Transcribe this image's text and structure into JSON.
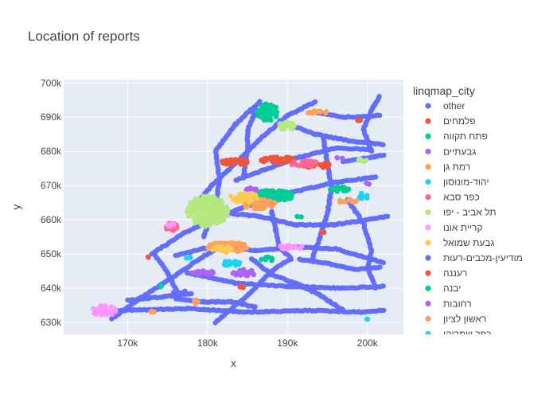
{
  "chart_data": {
    "type": "scatter",
    "title": "Location of reports",
    "xlabel": "x",
    "ylabel": "y",
    "xlim": [
      162000,
      204500
    ],
    "ylim": [
      626500,
      701000
    ],
    "x_ticks": [
      170000,
      180000,
      190000,
      200000
    ],
    "x_tick_labels": [
      "170k",
      "180k",
      "190k",
      "200k"
    ],
    "y_ticks": [
      630000,
      640000,
      650000,
      660000,
      670000,
      680000,
      690000,
      700000
    ],
    "y_tick_labels": [
      "630k",
      "640k",
      "650k",
      "660k",
      "670k",
      "680k",
      "690k",
      "700k"
    ],
    "grid": true,
    "legend": {
      "title": "linqmap_city",
      "placement": "right",
      "items": [
        {
          "label": "other",
          "color": "#636efa"
        },
        {
          "label": "פלמחים",
          "color": "#EF553B"
        },
        {
          "label": "פתח תקווה",
          "color": "#00cc96"
        },
        {
          "label": "גבעתיים",
          "color": "#ab63fa"
        },
        {
          "label": "רמת גן",
          "color": "#FFA15A"
        },
        {
          "label": "יהוד-מונוסון",
          "color": "#19d3f3"
        },
        {
          "label": "כפר סבא",
          "color": "#FF6692"
        },
        {
          "label": "תל אביב - יפו",
          "color": "#B6E880"
        },
        {
          "label": "קריית אונו",
          "color": "#FF97FF"
        },
        {
          "label": "גבעת שמואל",
          "color": "#FECB52"
        },
        {
          "label": "מודיעין-מכבים-רעות",
          "color": "#636efa"
        },
        {
          "label": "רעננה",
          "color": "#EF553B"
        },
        {
          "label": "יבנה",
          "color": "#00cc96"
        },
        {
          "label": "רחובות",
          "color": "#ab63fa"
        },
        {
          "label": "ראשון לציון",
          "color": "#FFA15A"
        },
        {
          "label": "כפר שמריהו",
          "color": "#19d3f3"
        }
      ]
    },
    "series": [
      {
        "name": "other",
        "color": "#636efa",
        "kind": "roads",
        "roads": [
          [
            [
              178000,
              663000
            ],
            [
              180500,
              670000
            ],
            [
              183500,
              676500
            ],
            [
              186500,
              683500
            ],
            [
              190000,
              690500
            ],
            [
              193500,
              694500
            ]
          ],
          [
            [
              179500,
              655000
            ],
            [
              181000,
              664000
            ],
            [
              181500,
              672000
            ],
            [
              181000,
              680000
            ],
            [
              183500,
              688000
            ],
            [
              186500,
              694500
            ]
          ],
          [
            [
              173000,
              650000
            ],
            [
              177000,
              656000
            ],
            [
              181500,
              661000
            ],
            [
              186000,
              665000
            ],
            [
              190500,
              668000
            ],
            [
              196000,
              671000
            ],
            [
              201000,
              672500
            ]
          ],
          [
            [
              168000,
              631000
            ],
            [
              171500,
              637000
            ],
            [
              175500,
              643000
            ],
            [
              179000,
              648500
            ],
            [
              182000,
              653000
            ]
          ],
          [
            [
              169000,
              633500
            ],
            [
              177500,
              634000
            ],
            [
              185000,
              633000
            ],
            [
              193000,
              633500
            ],
            [
              199000,
              633000
            ],
            [
              202000,
              633500
            ]
          ],
          [
            [
              177500,
              644500
            ],
            [
              183500,
              641500
            ],
            [
              190000,
              640500
            ],
            [
              197000,
              640000
            ],
            [
              202000,
              640500
            ]
          ],
          [
            [
              182000,
              662000
            ],
            [
              186500,
              661000
            ],
            [
              191000,
              658500
            ],
            [
              195500,
              658500
            ],
            [
              200000,
              660000
            ],
            [
              202500,
              661000
            ]
          ],
          [
            [
              183500,
              671500
            ],
            [
              187000,
              674500
            ],
            [
              191000,
              678000
            ],
            [
              196000,
              681000
            ],
            [
              200500,
              680500
            ]
          ],
          [
            [
              185500,
              648500
            ],
            [
              188000,
              644000
            ],
            [
              191500,
              641000
            ],
            [
              194000,
              638000
            ],
            [
              197000,
              633500
            ]
          ],
          [
            [
              189000,
              689000
            ],
            [
              193500,
              685000
            ],
            [
              198000,
              683000
            ],
            [
              202000,
              682000
            ]
          ],
          [
            [
              200500,
              680000
            ],
            [
              199500,
              686500
            ],
            [
              200500,
              692000
            ],
            [
              201500,
              696000
            ]
          ],
          [
            [
              197000,
              677000
            ],
            [
              201000,
              678500
            ],
            [
              202000,
              679000
            ]
          ],
          [
            [
              193500,
              691500
            ],
            [
              197000,
              690000
            ],
            [
              201500,
              690500
            ]
          ],
          [
            [
              176000,
              649500
            ],
            [
              181000,
              652500
            ],
            [
              186000,
              651000
            ],
            [
              191000,
              652000
            ],
            [
              196000,
              651500
            ],
            [
              202000,
              647500
            ]
          ],
          [
            [
              176000,
              637000
            ],
            [
              179500,
              636000
            ],
            [
              183000,
              636000
            ],
            [
              186000,
              634500
            ]
          ],
          [
            [
              197500,
              666000
            ],
            [
              199500,
              659000
            ],
            [
              200500,
              651000
            ],
            [
              200000,
              646000
            ],
            [
              201000,
              640000
            ]
          ],
          [
            [
              173500,
              649500
            ],
            [
              175000,
              644500
            ],
            [
              176500,
              637500
            ]
          ],
          [
            [
              186000,
              692000
            ],
            [
              185000,
              686000
            ],
            [
              185000,
              680000
            ],
            [
              184500,
              673000
            ]
          ],
          [
            [
              181000,
              630000
            ],
            [
              183000,
              634000
            ],
            [
              185500,
              639000
            ],
            [
              188000,
              645000
            ],
            [
              190000,
              648000
            ]
          ],
          [
            [
              194500,
              683500
            ],
            [
              195000,
              676500
            ],
            [
              195500,
              669500
            ],
            [
              195000,
              662000
            ],
            [
              194000,
              654500
            ],
            [
              193000,
              648000
            ]
          ],
          [
            [
              188000,
              662500
            ],
            [
              188500,
              657000
            ],
            [
              189000,
              652000
            ],
            [
              190500,
              648500
            ]
          ],
          [
            [
              170000,
              636500
            ],
            [
              174500,
              637500
            ],
            [
              178000,
              638500
            ]
          ],
          [
            [
              191500,
              648500
            ],
            [
              195500,
              647000
            ],
            [
              198500,
              645500
            ],
            [
              201500,
              646000
            ]
          ]
        ]
      },
      {
        "name": "פלמחים",
        "color": "#EF553B",
        "kind": "cluster",
        "clusters": [
          {
            "cx": 183500,
            "cy": 677000,
            "rx": 1800,
            "ry": 900,
            "n": 30
          },
          {
            "cx": 189000,
            "cy": 677500,
            "rx": 2400,
            "ry": 900,
            "n": 45
          },
          {
            "cx": 193500,
            "cy": 676000,
            "rx": 1800,
            "ry": 1000,
            "n": 30
          },
          {
            "cx": 172500,
            "cy": 649000,
            "rx": 200,
            "ry": 200,
            "n": 2
          },
          {
            "cx": 199000,
            "cy": 689000,
            "rx": 300,
            "ry": 300,
            "n": 3
          },
          {
            "cx": 184000,
            "cy": 640500,
            "rx": 700,
            "ry": 400,
            "n": 6
          }
        ]
      },
      {
        "name": "פתח תקווה",
        "color": "#00cc96",
        "kind": "cluster",
        "clusters": [
          {
            "cx": 188000,
            "cy": 667000,
            "rx": 2800,
            "ry": 1600,
            "n": 120
          },
          {
            "cx": 187500,
            "cy": 691500,
            "rx": 1300,
            "ry": 2500,
            "n": 60
          },
          {
            "cx": 196500,
            "cy": 669000,
            "rx": 1500,
            "ry": 700,
            "n": 20
          },
          {
            "cx": 187500,
            "cy": 648500,
            "rx": 800,
            "ry": 600,
            "n": 10
          }
        ]
      },
      {
        "name": "גבעתיים",
        "color": "#ab63fa",
        "kind": "cluster",
        "clusters": [
          {
            "cx": 179500,
            "cy": 644500,
            "rx": 1500,
            "ry": 600,
            "n": 25
          },
          {
            "cx": 184500,
            "cy": 644500,
            "rx": 1500,
            "ry": 1000,
            "n": 25
          },
          {
            "cx": 185500,
            "cy": 669000,
            "rx": 800,
            "ry": 700,
            "n": 10
          }
        ]
      },
      {
        "name": "רמת גן",
        "color": "#FFA15A",
        "kind": "cluster",
        "clusters": [
          {
            "cx": 182500,
            "cy": 652000,
            "rx": 2500,
            "ry": 1500,
            "n": 70
          },
          {
            "cx": 186500,
            "cy": 664500,
            "rx": 2200,
            "ry": 1500,
            "n": 50
          },
          {
            "cx": 193500,
            "cy": 691500,
            "rx": 1800,
            "ry": 400,
            "n": 15
          },
          {
            "cx": 197500,
            "cy": 665500,
            "rx": 1200,
            "ry": 600,
            "n": 10
          },
          {
            "cx": 178500,
            "cy": 636000,
            "rx": 400,
            "ry": 500,
            "n": 6
          }
        ]
      },
      {
        "name": "יהוד-מונוסון",
        "color": "#19d3f3",
        "kind": "cluster",
        "clusters": [
          {
            "cx": 183000,
            "cy": 647500,
            "rx": 1200,
            "ry": 1000,
            "n": 18
          },
          {
            "cx": 199500,
            "cy": 667000,
            "rx": 700,
            "ry": 900,
            "n": 10
          },
          {
            "cx": 200000,
            "cy": 631000,
            "rx": 200,
            "ry": 200,
            "n": 2
          }
        ]
      },
      {
        "name": "כפר סבא",
        "color": "#FF6692",
        "kind": "cluster",
        "clusters": [
          {
            "cx": 175500,
            "cy": 658000,
            "rx": 800,
            "ry": 1200,
            "n": 25
          },
          {
            "cx": 192000,
            "cy": 676500,
            "rx": 1800,
            "ry": 800,
            "n": 25
          }
        ]
      },
      {
        "name": "תל אביב - יפו",
        "color": "#B6E880",
        "kind": "cluster",
        "clusters": [
          {
            "cx": 180000,
            "cy": 662500,
            "rx": 2600,
            "ry": 4500,
            "n": 220
          },
          {
            "cx": 190000,
            "cy": 687500,
            "rx": 1200,
            "ry": 1200,
            "n": 20
          },
          {
            "cx": 199500,
            "cy": 677500,
            "rx": 600,
            "ry": 500,
            "n": 6
          }
        ]
      },
      {
        "name": "קריית אונו",
        "color": "#FF97FF",
        "kind": "cluster",
        "clusters": [
          {
            "cx": 167000,
            "cy": 633500,
            "rx": 1600,
            "ry": 1500,
            "n": 60
          },
          {
            "cx": 190500,
            "cy": 652000,
            "rx": 1500,
            "ry": 800,
            "n": 15
          },
          {
            "cx": 175500,
            "cy": 658500,
            "rx": 500,
            "ry": 400,
            "n": 6
          }
        ]
      },
      {
        "name": "גבעת שמואל",
        "color": "#FECB52",
        "kind": "cluster",
        "clusters": [
          {
            "cx": 184500,
            "cy": 666500,
            "rx": 1700,
            "ry": 1500,
            "n": 40
          },
          {
            "cx": 182000,
            "cy": 651500,
            "rx": 1500,
            "ry": 800,
            "n": 20
          }
        ]
      },
      {
        "name": "מודיעין-מכבים-רעות",
        "color": "#636efa",
        "kind": "cluster",
        "clusters": [
          {
            "cx": 176500,
            "cy": 639000,
            "rx": 800,
            "ry": 500,
            "n": 6
          }
        ]
      },
      {
        "name": "רעננה",
        "color": "#EF553B",
        "kind": "cluster",
        "clusters": [
          {
            "cx": 194500,
            "cy": 656500,
            "rx": 300,
            "ry": 300,
            "n": 3
          }
        ]
      },
      {
        "name": "יבנה",
        "color": "#00cc96",
        "kind": "cluster",
        "clusters": [
          {
            "cx": 174000,
            "cy": 640500,
            "rx": 300,
            "ry": 300,
            "n": 3
          },
          {
            "cx": 191500,
            "cy": 661000,
            "rx": 300,
            "ry": 300,
            "n": 3
          }
        ]
      },
      {
        "name": "רחובות",
        "color": "#ab63fa",
        "kind": "cluster",
        "clusters": [
          {
            "cx": 196500,
            "cy": 678000,
            "rx": 400,
            "ry": 300,
            "n": 3
          },
          {
            "cx": 200000,
            "cy": 670500,
            "rx": 300,
            "ry": 300,
            "n": 3
          }
        ]
      },
      {
        "name": "ראשון לציון",
        "color": "#FFA15A",
        "kind": "cluster",
        "clusters": [
          {
            "cx": 173000,
            "cy": 633000,
            "rx": 300,
            "ry": 300,
            "n": 3
          }
        ]
      },
      {
        "name": "כפר שמריהו",
        "color": "#19d3f3",
        "kind": "cluster",
        "clusters": [
          {
            "cx": 177500,
            "cy": 649000,
            "rx": 400,
            "ry": 400,
            "n": 4
          }
        ]
      }
    ]
  }
}
